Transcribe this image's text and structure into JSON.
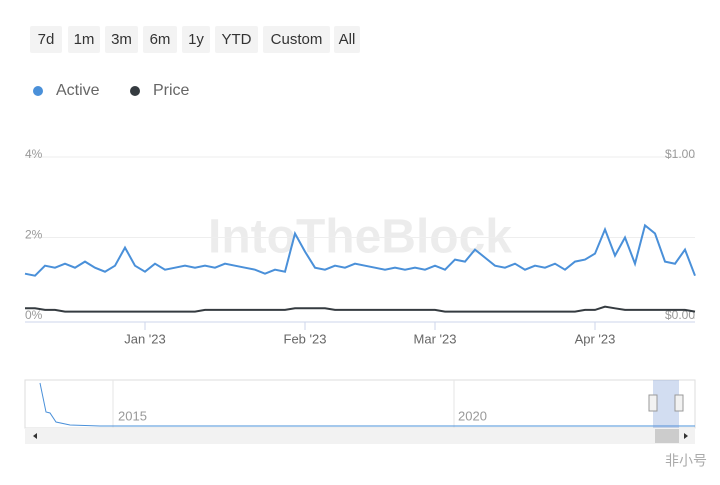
{
  "range_buttons": [
    "7d",
    "1m",
    "3m",
    "6m",
    "1y",
    "YTD",
    "Custom",
    "All"
  ],
  "chart_data": {
    "type": "line",
    "watermark": "IntoTheBlock",
    "categories": [
      null,
      null,
      null,
      null,
      null,
      null,
      null,
      null,
      null,
      null,
      null,
      null,
      "Jan '23",
      null,
      null,
      null,
      null,
      null,
      null,
      null,
      null,
      null,
      null,
      null,
      null,
      null,
      null,
      null,
      "Feb '23",
      null,
      null,
      null,
      null,
      null,
      null,
      null,
      null,
      null,
      null,
      null,
      null,
      "Mar '23",
      null,
      null,
      null,
      null,
      null,
      null,
      null,
      null,
      null,
      null,
      null,
      null,
      null,
      null,
      null,
      "Apr '23",
      null,
      null,
      null,
      null,
      null,
      null,
      null,
      null,
      null,
      null
    ],
    "series": [
      {
        "name": "Active",
        "color": "#4a90d9",
        "axis": "y",
        "values": [
          1.1,
          1.05,
          1.3,
          1.25,
          1.35,
          1.25,
          1.4,
          1.25,
          1.15,
          1.3,
          1.75,
          1.3,
          1.15,
          1.35,
          1.2,
          1.25,
          1.3,
          1.25,
          1.3,
          1.25,
          1.35,
          1.3,
          1.25,
          1.2,
          1.1,
          1.2,
          1.15,
          2.1,
          1.65,
          1.25,
          1.2,
          1.3,
          1.25,
          1.35,
          1.3,
          1.25,
          1.2,
          1.25,
          1.2,
          1.25,
          1.2,
          1.3,
          1.2,
          1.45,
          1.4,
          1.7,
          1.5,
          1.3,
          1.25,
          1.35,
          1.2,
          1.3,
          1.25,
          1.35,
          1.2,
          1.4,
          1.45,
          1.6,
          2.2,
          1.55,
          2.0,
          1.35,
          2.3,
          2.1,
          1.4,
          1.35,
          1.7,
          1.05
        ]
      },
      {
        "name": "Price",
        "color": "#353b40",
        "axis": "y2",
        "values": [
          0.06,
          0.06,
          0.05,
          0.05,
          0.04,
          0.04,
          0.04,
          0.04,
          0.04,
          0.04,
          0.04,
          0.04,
          0.04,
          0.04,
          0.04,
          0.04,
          0.04,
          0.04,
          0.05,
          0.05,
          0.05,
          0.05,
          0.05,
          0.05,
          0.05,
          0.05,
          0.05,
          0.06,
          0.06,
          0.06,
          0.06,
          0.05,
          0.05,
          0.05,
          0.05,
          0.05,
          0.05,
          0.05,
          0.05,
          0.05,
          0.05,
          0.05,
          0.04,
          0.04,
          0.04,
          0.04,
          0.04,
          0.04,
          0.04,
          0.04,
          0.04,
          0.04,
          0.04,
          0.04,
          0.04,
          0.04,
          0.05,
          0.05,
          0.07,
          0.06,
          0.05,
          0.05,
          0.05,
          0.05,
          0.05,
          0.05,
          0.05,
          0.04
        ]
      }
    ],
    "ylim": [
      0,
      4
    ],
    "yticks": [
      {
        "value": 0,
        "label": "0%"
      },
      {
        "value": 2,
        "label": "2%"
      },
      {
        "value": 4,
        "label": "4%"
      }
    ],
    "y2lim": [
      0,
      1
    ],
    "y2ticks": [
      {
        "value": 0,
        "label": "$0.00"
      },
      {
        "value": 1,
        "label": "$1.00"
      }
    ],
    "grid": true,
    "navigator_labels": [
      "2015",
      "2020"
    ]
  },
  "corner_watermark": "非小号"
}
